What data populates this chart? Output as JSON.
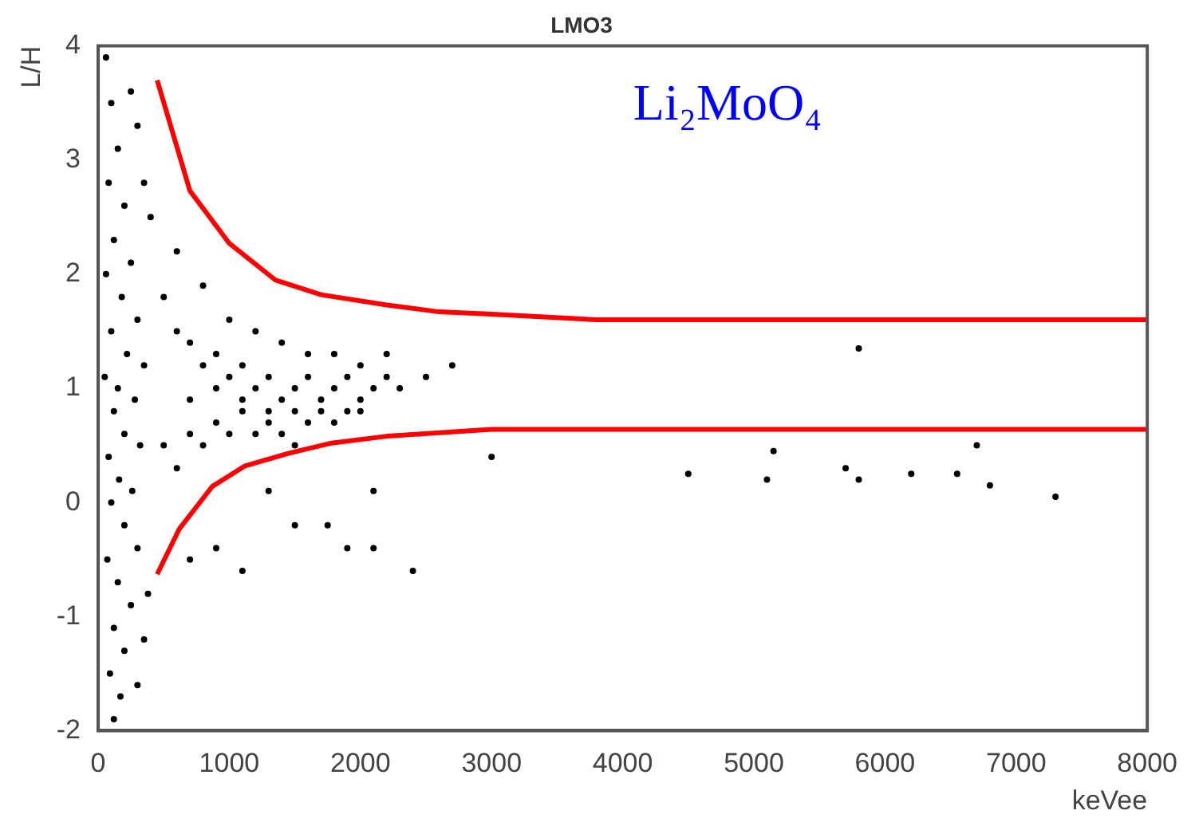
{
  "chart_data": {
    "type": "scatter",
    "title": "LMO3",
    "xlabel": "keVee",
    "ylabel": "L/H",
    "annotations": [
      "Li₂MoO₄"
    ],
    "xlim": [
      0,
      8000
    ],
    "ylim": [
      -2,
      4
    ],
    "xticks": [
      0,
      1000,
      2000,
      3000,
      4000,
      5000,
      6000,
      7000,
      8000
    ],
    "yticks": [
      -2,
      -1,
      0,
      1,
      2,
      3,
      4
    ],
    "grid": false,
    "legend": false,
    "series": [
      {
        "color": "#000000",
        "x": [
          60,
          100,
          150,
          80,
          200,
          120,
          250,
          60,
          180,
          300,
          100,
          220,
          350,
          50,
          150,
          280,
          120,
          200,
          320,
          80,
          160,
          260,
          100,
          200,
          300,
          70,
          150,
          250,
          120,
          200,
          90,
          170,
          120,
          300,
          350,
          380,
          300,
          400,
          250,
          350,
          500,
          600,
          700,
          800,
          900,
          1000,
          1100,
          1200,
          1300,
          1400,
          1500,
          1600,
          1700,
          1800,
          1900,
          2000,
          2100,
          2200,
          2300,
          500,
          600,
          700,
          800,
          900,
          1000,
          1100,
          1200,
          1300,
          1400,
          1500,
          1600,
          1700,
          1800,
          1900,
          2000,
          600,
          800,
          1000,
          1200,
          1400,
          1600,
          1800,
          2000,
          2200,
          2500,
          2700,
          700,
          900,
          1100,
          1300,
          1500,
          700,
          900,
          1100,
          1300,
          1500,
          1750,
          1900,
          2100,
          2400,
          2100,
          3000,
          4500,
          5100,
          5150,
          5700,
          5800,
          5800,
          6200,
          6550,
          6700,
          6800,
          7300
        ],
        "values": [
          3.9,
          3.5,
          3.1,
          2.8,
          2.6,
          2.3,
          2.1,
          2.0,
          1.8,
          1.6,
          1.5,
          1.3,
          1.2,
          1.1,
          1.0,
          0.9,
          0.8,
          0.6,
          0.5,
          0.4,
          0.2,
          0.1,
          0.0,
          -0.2,
          -0.4,
          -0.5,
          -0.7,
          -0.9,
          -1.1,
          -1.3,
          -1.5,
          -1.7,
          -1.9,
          -1.6,
          -1.2,
          -0.8,
          3.3,
          2.5,
          3.6,
          2.8,
          1.8,
          1.5,
          1.4,
          1.2,
          1.3,
          1.1,
          1.2,
          1.0,
          1.1,
          0.9,
          1.0,
          1.1,
          0.9,
          1.0,
          1.1,
          0.9,
          1.0,
          1.1,
          1.0,
          0.5,
          0.3,
          0.6,
          0.5,
          0.7,
          0.6,
          0.8,
          0.6,
          0.7,
          0.6,
          0.8,
          0.7,
          0.8,
          0.7,
          0.8,
          0.8,
          2.2,
          1.9,
          1.6,
          1.5,
          1.4,
          1.3,
          1.3,
          1.2,
          1.3,
          1.1,
          1.2,
          0.9,
          1.0,
          0.9,
          0.8,
          0.5,
          -0.5,
          -0.4,
          -0.6,
          0.1,
          -0.2,
          -0.2,
          -0.4,
          -0.4,
          -0.6,
          0.1,
          0.4,
          0.25,
          0.2,
          0.45,
          0.3,
          0.2,
          1.35,
          0.25,
          0.25,
          0.5,
          0.15,
          0.05
        ]
      },
      {
        "type": "line",
        "color": "#ff0000",
        "x": [
          450,
          700,
          1000,
          1350,
          1700,
          2200,
          2600,
          3000,
          3800,
          8000
        ],
        "values": [
          3.7,
          2.73,
          2.27,
          1.95,
          1.82,
          1.73,
          1.67,
          1.65,
          1.6,
          1.6
        ]
      },
      {
        "type": "line",
        "color": "#ff0000",
        "x": [
          450,
          620,
          870,
          1120,
          1450,
          1780,
          2200,
          2600,
          3000,
          8000
        ],
        "values": [
          -0.63,
          -0.23,
          0.14,
          0.32,
          0.43,
          0.52,
          0.58,
          0.61,
          0.64,
          0.64
        ]
      }
    ]
  }
}
